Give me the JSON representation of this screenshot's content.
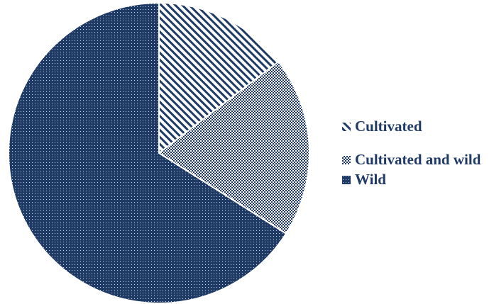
{
  "chart_data": {
    "type": "pie",
    "title": "",
    "categories": [
      "Cultivated",
      "Cultivated and wild",
      "Wild"
    ],
    "values": [
      14.6,
      19.4,
      66.0
    ],
    "unit": "",
    "legend_position": "right",
    "start_angle": "12 o'clock",
    "direction": "clockwise",
    "colors": {
      "base": "#1f3a64",
      "light": "#ffffff",
      "legend_text": "#1f3a64"
    },
    "patterns": [
      "diagonal-stripes",
      "light-dots",
      "dense-dots"
    ]
  }
}
